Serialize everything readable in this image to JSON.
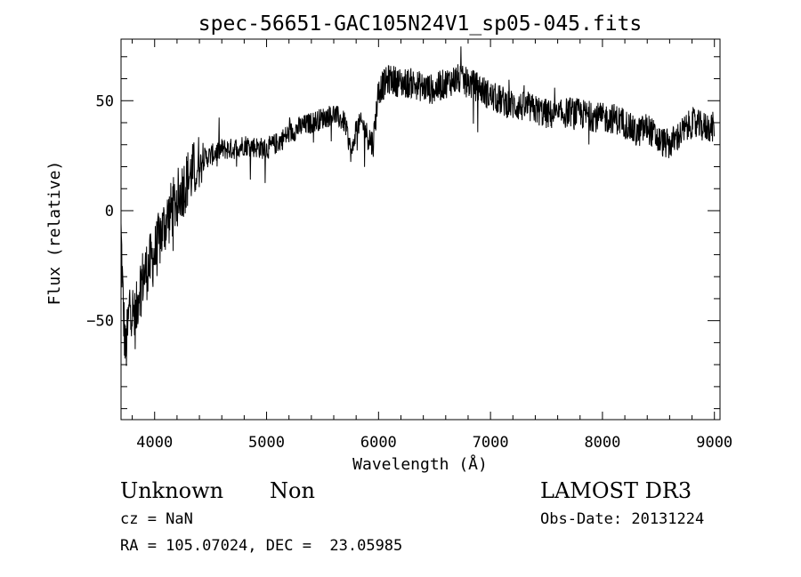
{
  "chart_data": {
    "type": "line",
    "title": "spec-56651-GAC105N24V1_sp05-045.fits",
    "xlabel": "Wavelength (Å)",
    "ylabel": "Flux (relative)",
    "xlim": [
      3700,
      9050
    ],
    "ylim": [
      -95,
      78
    ],
    "x_ticks": [
      4000,
      5000,
      6000,
      7000,
      8000,
      9000
    ],
    "y_ticks": [
      -50,
      0,
      50
    ],
    "grid": false,
    "series": [
      {
        "x": [
          3700,
          3720,
          3740,
          3760,
          3780,
          3800,
          3830,
          3860,
          3900,
          3950,
          4000,
          4050,
          4100,
          4150,
          4200,
          4250,
          4300,
          4350,
          4400,
          4450,
          4500,
          4600,
          4700,
          4800,
          4900,
          5000,
          5100,
          5200,
          5300,
          5400,
          5500,
          5600,
          5700,
          5760,
          5800,
          5850,
          5900,
          5950,
          6000,
          6100,
          6200,
          6300,
          6400,
          6500,
          6600,
          6700,
          6800,
          6900,
          7000,
          7100,
          7200,
          7300,
          7400,
          7500,
          7600,
          7700,
          7800,
          7900,
          8000,
          8100,
          8200,
          8300,
          8400,
          8500,
          8600,
          8700,
          8800,
          8900,
          9000
        ],
        "y": [
          -10,
          -45,
          -65,
          -55,
          -40,
          -45,
          -50,
          -35,
          -30,
          -25,
          -20,
          -12,
          -5,
          0,
          5,
          10,
          15,
          18,
          22,
          24,
          25,
          28,
          28,
          30,
          29,
          28,
          31,
          35,
          38,
          40,
          42,
          44,
          40,
          25,
          38,
          40,
          35,
          30,
          55,
          60,
          58,
          58,
          56,
          55,
          58,
          60,
          58,
          56,
          52,
          50,
          48,
          47,
          46,
          44,
          43,
          45,
          44,
          43,
          42,
          42,
          40,
          35,
          38,
          32,
          30,
          35,
          40,
          38,
          38
        ]
      }
    ]
  },
  "footer": {
    "object_type": "Unknown",
    "subclass": "Non",
    "survey": "LAMOST DR3",
    "cz": "cz = NaN",
    "obs_date": "Obs-Date: 20131224",
    "coords": "RA = 105.07024, DEC =  23.05985"
  }
}
